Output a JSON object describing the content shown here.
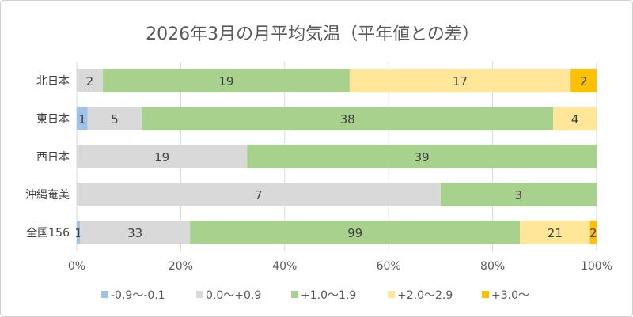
{
  "chart_data": {
    "type": "bar",
    "orientation": "horizontal",
    "stacked": "percent",
    "title": "2026年3月の月平均気温（平年値との差）",
    "categories": [
      "北日本",
      "東日本",
      "西日本",
      "沖縄奄美",
      "全国156"
    ],
    "series": [
      {
        "name": "-0.9〜-0.1",
        "color": "#9DC3E6",
        "values": [
          0,
          1,
          0,
          0,
          1
        ]
      },
      {
        "name": "0.0〜+0.9",
        "color": "#D9D9D9",
        "values": [
          2,
          5,
          19,
          7,
          33
        ]
      },
      {
        "name": "+1.0〜1.9",
        "color": "#A9D18E",
        "values": [
          19,
          38,
          39,
          3,
          99
        ]
      },
      {
        "name": "+2.0〜2.9",
        "color": "#FFE699",
        "values": [
          17,
          4,
          0,
          0,
          21
        ]
      },
      {
        "name": "+3.0〜",
        "color": "#FFC000",
        "values": [
          2,
          0,
          0,
          0,
          2
        ]
      }
    ],
    "xticks": [
      "0%",
      "20%",
      "40%",
      "60%",
      "80%",
      "100%"
    ],
    "xlim": [
      0,
      100
    ],
    "grid": true,
    "legend": "bottom",
    "data_labels": true
  }
}
